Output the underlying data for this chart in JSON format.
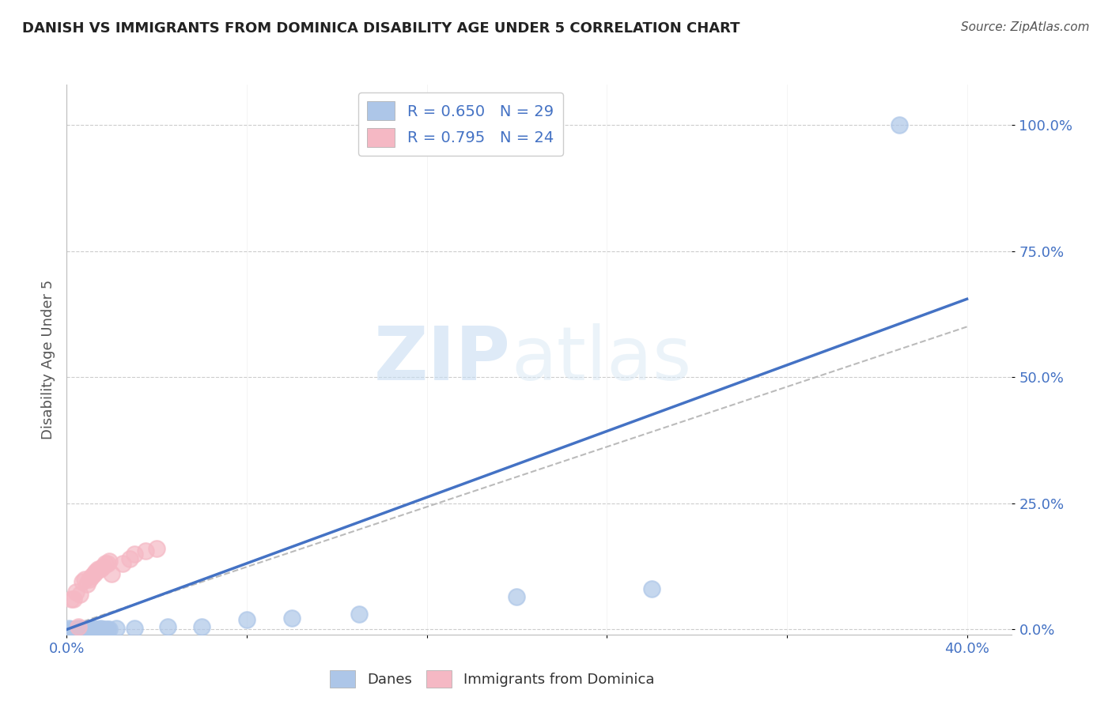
{
  "title": "DANISH VS IMMIGRANTS FROM DOMINICA DISABILITY AGE UNDER 5 CORRELATION CHART",
  "source": "Source: ZipAtlas.com",
  "ylabel": "Disability Age Under 5",
  "xlim": [
    0.0,
    0.42
  ],
  "ylim": [
    -0.01,
    1.08
  ],
  "ytick_positions": [
    0.0,
    0.25,
    0.5,
    0.75,
    1.0
  ],
  "xtick_positions": [
    0.0,
    0.08,
    0.16,
    0.24,
    0.32,
    0.4
  ],
  "xtick_labels": [
    "0.0%",
    "",
    "",
    "",
    "",
    "40.0%"
  ],
  "title_color": "#222222",
  "tick_label_color": "#4472c4",
  "watermark_zip": "ZIP",
  "watermark_atlas": "atlas",
  "legend_r1": "R = 0.650   N = 29",
  "legend_r2": "R = 0.795   N = 24",
  "danes_color": "#adc6e8",
  "dominica_color": "#f5b8c4",
  "danes_line_color": "#4472c4",
  "dominica_line_color": "#e8a0a8",
  "danes_scatter": [
    [
      0.001,
      0.002
    ],
    [
      0.002,
      0.001
    ],
    [
      0.003,
      0.001
    ],
    [
      0.004,
      0.001
    ],
    [
      0.005,
      0.002
    ],
    [
      0.006,
      0.001
    ],
    [
      0.007,
      0.001
    ],
    [
      0.008,
      0.001
    ],
    [
      0.009,
      0.001
    ],
    [
      0.01,
      0.002
    ],
    [
      0.011,
      0.001
    ],
    [
      0.012,
      0.001
    ],
    [
      0.013,
      0.001
    ],
    [
      0.014,
      0.001
    ],
    [
      0.015,
      0.002
    ],
    [
      0.016,
      0.001
    ],
    [
      0.017,
      0.001
    ],
    [
      0.018,
      0.001
    ],
    [
      0.019,
      0.001
    ],
    [
      0.022,
      0.002
    ],
    [
      0.03,
      0.003
    ],
    [
      0.045,
      0.005
    ],
    [
      0.06,
      0.005
    ],
    [
      0.08,
      0.02
    ],
    [
      0.1,
      0.022
    ],
    [
      0.13,
      0.03
    ],
    [
      0.2,
      0.065
    ],
    [
      0.26,
      0.08
    ],
    [
      0.37,
      1.0
    ]
  ],
  "dominica_scatter": [
    [
      0.002,
      0.06
    ],
    [
      0.003,
      0.06
    ],
    [
      0.004,
      0.075
    ],
    [
      0.005,
      0.005
    ],
    [
      0.006,
      0.07
    ],
    [
      0.007,
      0.095
    ],
    [
      0.008,
      0.1
    ],
    [
      0.009,
      0.09
    ],
    [
      0.01,
      0.1
    ],
    [
      0.011,
      0.105
    ],
    [
      0.012,
      0.11
    ],
    [
      0.013,
      0.115
    ],
    [
      0.014,
      0.12
    ],
    [
      0.015,
      0.12
    ],
    [
      0.016,
      0.125
    ],
    [
      0.017,
      0.13
    ],
    [
      0.018,
      0.13
    ],
    [
      0.019,
      0.135
    ],
    [
      0.02,
      0.11
    ],
    [
      0.025,
      0.13
    ],
    [
      0.028,
      0.14
    ],
    [
      0.03,
      0.15
    ],
    [
      0.035,
      0.155
    ],
    [
      0.04,
      0.16
    ]
  ],
  "danes_trend_x": [
    0.0,
    0.4
  ],
  "danes_trend_y": [
    0.0,
    0.655
  ],
  "dominica_trend_x": [
    0.0,
    0.4
  ],
  "dominica_trend_y": [
    0.005,
    0.6
  ],
  "background_color": "#ffffff",
  "grid_color": "#cccccc"
}
